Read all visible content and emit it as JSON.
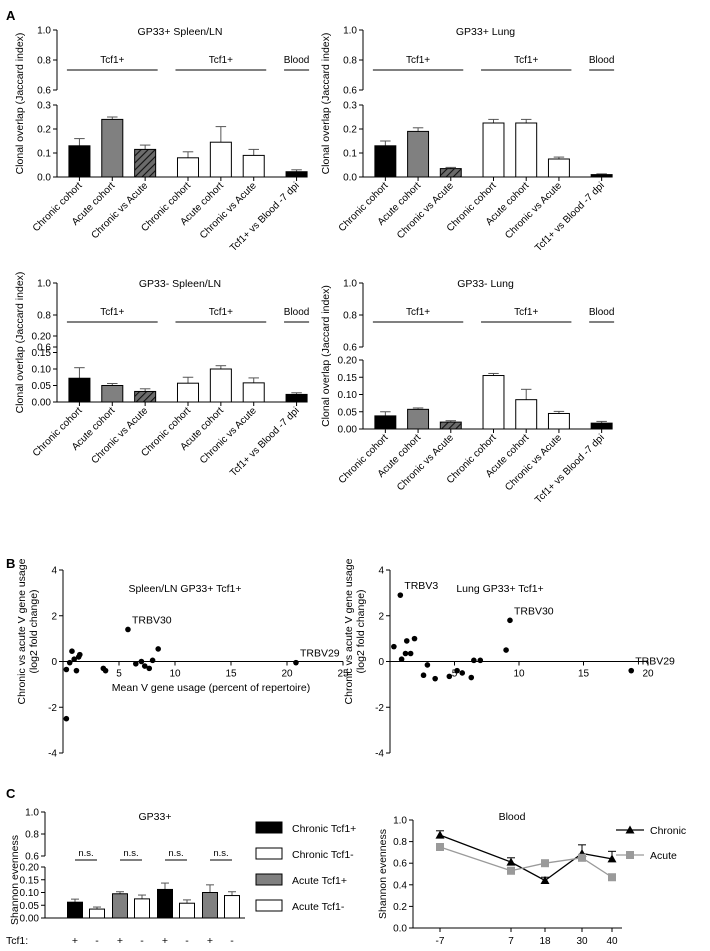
{
  "panel_labels": {
    "a": "A",
    "b": "B",
    "c": "C"
  },
  "tick_labels": [
    "0.0",
    "0.1",
    "0.2",
    "0.3",
    "0.6",
    "0.8",
    "1.0",
    "0.05",
    "0.10",
    "0.15",
    "0.20",
    "-4",
    "-2",
    "0",
    "2",
    "4",
    "5",
    "10",
    "15",
    "20",
    "25",
    "-7",
    "7",
    "18",
    "30",
    "40"
  ],
  "colors": {
    "black": "#000000",
    "gray": "#808080",
    "white": "#ffffff",
    "line_gray": "#9a9a9a",
    "error": "#555555"
  },
  "chart_data": [
    {
      "id": "a1",
      "type": "bar",
      "title": "GP33+ Spleen/LN",
      "ylabel": "Clonal overlap (Jaccard index)",
      "lower_ylim": [
        0,
        0.3
      ],
      "lower_ticks": [
        "0.0",
        "0.1",
        "0.2",
        "0.3"
      ],
      "upper_ticks": [
        "0.6",
        "0.8",
        "1.0"
      ],
      "groups": [
        "Tcf1+",
        "Tcf1+",
        "Blood"
      ],
      "categories": [
        "Chronic cohort",
        "Acute cohort",
        "Chronic vs Acute",
        "Chronic cohort",
        "Acute cohort",
        "Chronic vs Acute",
        "Tcf1+ vs Blood -7 dpi"
      ],
      "values": [
        0.13,
        0.24,
        0.115,
        0.08,
        0.145,
        0.09,
        0.022
      ],
      "errors": [
        0.03,
        0.01,
        0.018,
        0.025,
        0.065,
        0.025,
        0.008
      ],
      "fills": [
        "black",
        "gray",
        "hatch",
        "white",
        "white",
        "white",
        "black"
      ]
    },
    {
      "id": "a2",
      "type": "bar",
      "title": "GP33+ Lung",
      "ylabel": "Clonal overlap (Jaccard index)",
      "lower_ylim": [
        0,
        0.3
      ],
      "lower_ticks": [
        "0.0",
        "0.1",
        "0.2",
        "0.3"
      ],
      "upper_ticks": [
        "0.6",
        "0.8",
        "1.0"
      ],
      "groups": [
        "Tcf1+",
        "Tcf1+",
        "Blood"
      ],
      "categories": [
        "Chronic cohort",
        "Acute cohort",
        "Chronic vs Acute",
        "Chronic cohort",
        "Acute cohort",
        "Chronic vs Acute",
        "Tcf1+ vs Blood -7 dpi"
      ],
      "values": [
        0.13,
        0.19,
        0.035,
        0.225,
        0.225,
        0.075,
        0.01
      ],
      "errors": [
        0.02,
        0.015,
        0.005,
        0.015,
        0.015,
        0.008,
        0.003
      ],
      "fills": [
        "black",
        "gray",
        "hatch",
        "white",
        "white",
        "white",
        "black"
      ]
    },
    {
      "id": "a3",
      "type": "bar",
      "title": "GP33- Spleen/LN",
      "ylabel": "Clonal overlap (Jaccard index)",
      "lower_ylim": [
        0,
        0.2
      ],
      "lower_ticks": [
        "0.00",
        "0.05",
        "0.10",
        "0.15",
        "0.20"
      ],
      "upper_ticks": [
        "0.6",
        "0.8",
        "1.0"
      ],
      "groups": [
        "Tcf1+",
        "Tcf1+",
        "Blood"
      ],
      "categories": [
        "Chronic cohort",
        "Acute cohort",
        "Chronic vs Acute",
        "Chronic cohort",
        "Acute cohort",
        "Chronic vs Acute",
        "Tcf1+ vs Blood -7 dpi"
      ],
      "values": [
        0.072,
        0.05,
        0.032,
        0.057,
        0.1,
        0.058,
        0.023
      ],
      "errors": [
        0.032,
        0.006,
        0.008,
        0.018,
        0.01,
        0.015,
        0.005
      ],
      "fills": [
        "black",
        "gray",
        "hatch",
        "white",
        "white",
        "white",
        "black"
      ]
    },
    {
      "id": "a4",
      "type": "bar",
      "title": "GP33- Lung",
      "ylabel": "Clonal overlap (Jaccard index)",
      "lower_ylim": [
        0,
        0.2
      ],
      "lower_ticks": [
        "0.00",
        "0.05",
        "0.10",
        "0.15",
        "0.20"
      ],
      "upper_ticks": [
        "0.6",
        "0.8",
        "1.0"
      ],
      "groups": [
        "Tcf1+",
        "Tcf1+",
        "Blood"
      ],
      "categories": [
        "Chronic cohort",
        "Acute cohort",
        "Chronic vs Acute",
        "Chronic cohort",
        "Acute cohort",
        "Chronic vs Acute",
        "Tcf1+ vs Blood -7 dpi"
      ],
      "values": [
        0.038,
        0.057,
        0.02,
        0.155,
        0.085,
        0.045,
        0.017
      ],
      "errors": [
        0.012,
        0.004,
        0.004,
        0.006,
        0.03,
        0.006,
        0.005
      ],
      "fills": [
        "black",
        "gray",
        "hatch",
        "white",
        "white",
        "white",
        "black"
      ]
    },
    {
      "id": "b1",
      "type": "scatter",
      "title": "Spleen/LN GP33+ Tcf1+",
      "xlabel": "Mean V gene usage (percent of repertoire)",
      "ylabel": "Chronic vs acute V gene usage",
      "ylabel2": "(log2 fold change)",
      "xlim": [
        0,
        25
      ],
      "ylim": [
        -4,
        4
      ],
      "xticks": [
        "5",
        "10",
        "15",
        "20",
        "25"
      ],
      "yticks": [
        "-4",
        "-2",
        "0",
        "2",
        "4"
      ],
      "points": [
        [
          0.3,
          -2.5
        ],
        [
          0.3,
          -0.35
        ],
        [
          0.6,
          -0.05
        ],
        [
          0.8,
          0.45
        ],
        [
          1.0,
          0.1
        ],
        [
          1.2,
          -0.4
        ],
        [
          1.4,
          0.2
        ],
        [
          1.5,
          0.3
        ],
        [
          3.6,
          -0.3
        ],
        [
          3.8,
          -0.4
        ],
        [
          5.8,
          1.4
        ],
        [
          6.5,
          -0.1
        ],
        [
          7.0,
          0.0
        ],
        [
          7.3,
          -0.2
        ],
        [
          7.7,
          -0.3
        ],
        [
          8.0,
          0.05
        ],
        [
          8.5,
          0.55
        ],
        [
          20.8,
          -0.05
        ]
      ],
      "annotations": [
        {
          "label": "TRBV30",
          "x": 5.8,
          "y": 1.4
        },
        {
          "label": "TRBV29",
          "x": 20.8,
          "y": -0.05
        }
      ]
    },
    {
      "id": "b2",
      "type": "scatter",
      "title": "Lung GP33+ Tcf1+",
      "xlabel": "",
      "ylabel": "Chronic vs acute V gene usage",
      "ylabel2": "(log2 fold change)",
      "xlim": [
        0,
        20
      ],
      "ylim": [
        -4,
        4
      ],
      "xticks": [
        "5",
        "10",
        "15",
        "20"
      ],
      "yticks": [
        "-4",
        "-2",
        "0",
        "2",
        "4"
      ],
      "points": [
        [
          0.3,
          0.65
        ],
        [
          0.8,
          2.9
        ],
        [
          0.9,
          0.1
        ],
        [
          1.2,
          0.35
        ],
        [
          1.3,
          0.9
        ],
        [
          1.6,
          0.35
        ],
        [
          1.9,
          1.0
        ],
        [
          2.6,
          -0.6
        ],
        [
          2.9,
          -0.15
        ],
        [
          3.5,
          -0.75
        ],
        [
          4.6,
          -0.65
        ],
        [
          5.2,
          -0.4
        ],
        [
          5.6,
          -0.5
        ],
        [
          6.3,
          -0.7
        ],
        [
          6.5,
          0.05
        ],
        [
          7.0,
          0.05
        ],
        [
          9.0,
          0.5
        ],
        [
          9.3,
          1.8
        ],
        [
          18.7,
          -0.4
        ]
      ],
      "annotations": [
        {
          "label": "TRBV3",
          "x": 0.8,
          "y": 2.9
        },
        {
          "label": "TRBV30",
          "x": 9.3,
          "y": 1.8
        },
        {
          "label": "TRBV29",
          "x": 18.7,
          "y": -0.4
        }
      ]
    },
    {
      "id": "c1",
      "type": "bar",
      "title": "GP33+",
      "ylabel": "Shannon evenness",
      "lower_ylim": [
        0,
        0.2
      ],
      "lower_ticks": [
        "0.00",
        "0.05",
        "0.10",
        "0.15",
        "0.20"
      ],
      "upper_ticks": [
        "0.6",
        "0.8",
        "1.0"
      ],
      "row_label": "Tcf1:",
      "tcf_signs": [
        "+",
        "-",
        "+",
        "-",
        "+",
        "-",
        "+",
        "-"
      ],
      "sig_labels": [
        "n.s.",
        "n.s.",
        "n.s.",
        "n.s."
      ],
      "values": [
        0.062,
        0.035,
        0.095,
        0.075,
        0.112,
        0.058,
        0.1,
        0.088
      ],
      "errors": [
        0.012,
        0.008,
        0.008,
        0.015,
        0.025,
        0.013,
        0.03,
        0.015
      ],
      "fills": [
        "black",
        "white",
        "gray",
        "white",
        "black",
        "white",
        "gray",
        "white"
      ],
      "legend": [
        {
          "label": "Chronic Tcf1+",
          "fill": "black"
        },
        {
          "label": "Chronic Tcf1-",
          "fill": "white"
        },
        {
          "label": "Acute Tcf1+",
          "fill": "gray"
        },
        {
          "label": "Acute Tcf1-",
          "fill": "white"
        }
      ]
    },
    {
      "id": "c2",
      "type": "line",
      "title": "Blood",
      "ylabel": "Shannon evenness",
      "x": [
        "-7",
        "7",
        "18",
        "30",
        "40"
      ],
      "ylim": [
        0,
        1.0
      ],
      "yticks": [
        "0.0",
        "0.2",
        "0.4",
        "0.6",
        "0.8",
        "1.0"
      ],
      "series": [
        {
          "name": "Chronic",
          "values": [
            0.86,
            0.61,
            0.44,
            0.69,
            0.64
          ],
          "errors": [
            0.04,
            0.04,
            0.03,
            0.08,
            0.07
          ]
        },
        {
          "name": "Acute",
          "values": [
            0.75,
            0.53,
            0.6,
            0.65,
            0.47
          ],
          "errors": [
            0.03,
            0.03,
            0.02,
            0.03,
            0.03
          ]
        }
      ]
    }
  ]
}
